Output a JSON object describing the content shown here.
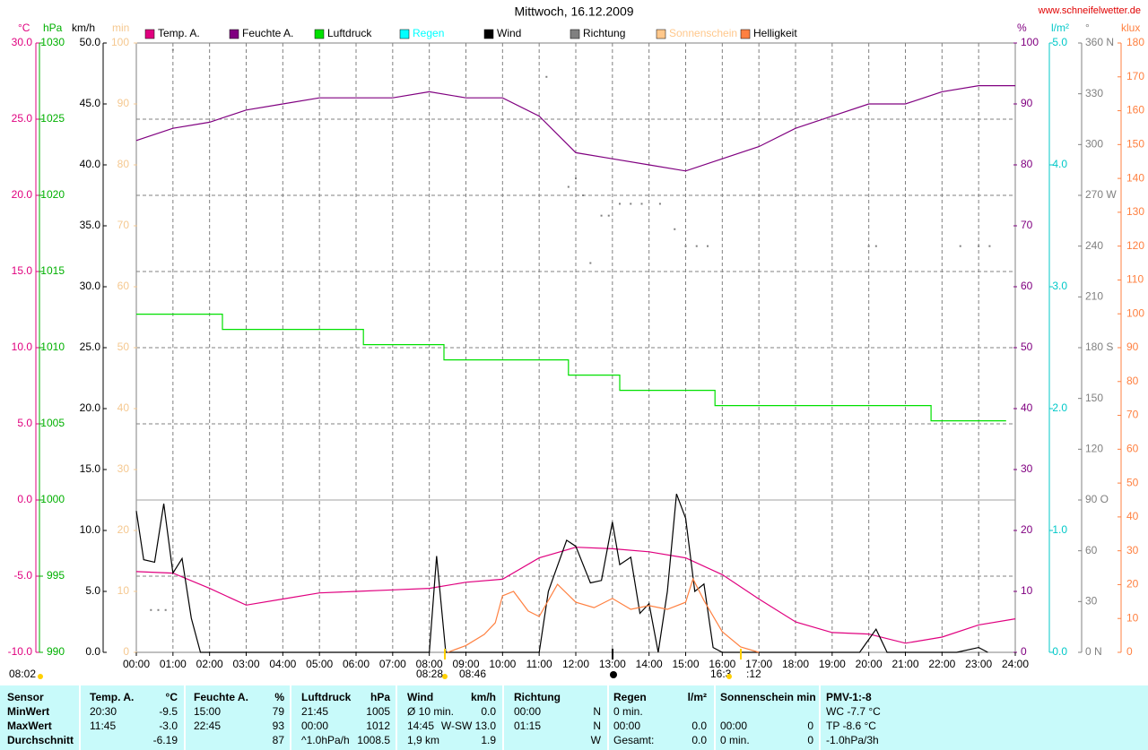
{
  "header": {
    "title": "Mittwoch, 16.12.2009",
    "site": "www.schneifelwetter.de"
  },
  "chart_data": {
    "type": "line",
    "xlim": [
      0,
      24
    ],
    "grid": true,
    "xticks": [
      {
        "value": 0,
        "label": "00:00"
      },
      {
        "value": 1,
        "label": "01:00"
      },
      {
        "value": 2,
        "label": "02:00"
      },
      {
        "value": 3,
        "label": "03:00"
      },
      {
        "value": 4,
        "label": "04:00"
      },
      {
        "value": 5,
        "label": "05:00"
      },
      {
        "value": 6,
        "label": "06:00"
      },
      {
        "value": 7,
        "label": "07:00"
      },
      {
        "value": 8,
        "label": "08:00"
      },
      {
        "value": 9,
        "label": "09:00"
      },
      {
        "value": 10,
        "label": "10:00"
      },
      {
        "value": 11,
        "label": "11:00"
      },
      {
        "value": 12,
        "label": "12:00"
      },
      {
        "value": 13,
        "label": "13:00"
      },
      {
        "value": 14,
        "label": "14:00"
      },
      {
        "value": 15,
        "label": "15:00"
      },
      {
        "value": 16,
        "label": "16:00"
      },
      {
        "value": 17,
        "label": "17:00"
      },
      {
        "value": 18,
        "label": "18:00"
      },
      {
        "value": 19,
        "label": "19:00"
      },
      {
        "value": 20,
        "label": "20:00"
      },
      {
        "value": 21,
        "label": "21:00"
      },
      {
        "value": 22,
        "label": "22:00"
      },
      {
        "value": 23,
        "label": "23:00"
      },
      {
        "value": 24,
        "label": "24:00"
      }
    ],
    "axes": [
      {
        "id": "temp",
        "unit": "°C",
        "color": "#e0007f",
        "lim": [
          -10,
          30
        ],
        "ticks": [
          {
            "value": 30,
            "label": "30.0"
          },
          {
            "value": 25,
            "label": "25.0"
          },
          {
            "value": 20,
            "label": "20.0"
          },
          {
            "value": 15,
            "label": "15.0"
          },
          {
            "value": 10,
            "label": "10.0"
          },
          {
            "value": 5,
            "label": "5.0"
          },
          {
            "value": 0,
            "label": "0.0"
          },
          {
            "value": -5,
            "label": "-5.0"
          },
          {
            "value": -10,
            "label": "-10.0"
          }
        ]
      },
      {
        "id": "hpa",
        "unit": "hPa",
        "color": "#00b000",
        "lim": [
          990,
          1030
        ],
        "ticks": [
          1030,
          1025,
          1020,
          1015,
          1010,
          1005,
          1000,
          995,
          990
        ]
      },
      {
        "id": "wind",
        "unit": "km/h",
        "color": "#000000",
        "lim": [
          0,
          50
        ],
        "ticks": [
          {
            "value": 50,
            "label": "50.0"
          },
          {
            "value": 45,
            "label": "45.0"
          },
          {
            "value": 40,
            "label": "40.0"
          },
          {
            "value": 35,
            "label": "35.0"
          },
          {
            "value": 30,
            "label": "30.0"
          },
          {
            "value": 25,
            "label": "25.0"
          },
          {
            "value": 20,
            "label": "20.0"
          },
          {
            "value": 15,
            "label": "15.0"
          },
          {
            "value": 10,
            "label": "10.0"
          },
          {
            "value": 5,
            "label": "5.0"
          },
          {
            "value": 0,
            "label": "0.0"
          }
        ]
      },
      {
        "id": "min",
        "unit": "min",
        "color": "#f5c890",
        "lim": [
          0,
          100
        ],
        "ticks": [
          100,
          90,
          80,
          70,
          60,
          50,
          40,
          30,
          20,
          10,
          0
        ]
      },
      {
        "id": "hum",
        "unit": "%",
        "color": "#800080",
        "lim": [
          0,
          100
        ],
        "ticks": [
          100,
          90,
          80,
          70,
          60,
          50,
          40,
          30,
          20,
          10,
          0
        ]
      },
      {
        "id": "rain",
        "unit": "l/m²",
        "color": "#00c8c8",
        "lim": [
          0,
          5
        ],
        "ticks": [
          {
            "value": 5,
            "label": "5.0"
          },
          {
            "value": 4,
            "label": "4.0"
          },
          {
            "value": 3,
            "label": "3.0"
          },
          {
            "value": 2,
            "label": "2.0"
          },
          {
            "value": 1,
            "label": "1.0"
          },
          {
            "value": 0,
            "label": "0.0"
          }
        ]
      },
      {
        "id": "dir",
        "unit": "°",
        "color": "#808080",
        "lim": [
          0,
          360
        ],
        "ticks": [
          {
            "value": 360,
            "label": "360 N"
          },
          330,
          300,
          {
            "value": 270,
            "label": "270 W"
          },
          240,
          210,
          {
            "value": 180,
            "label": "180 S"
          },
          150,
          120,
          {
            "value": 90,
            "label": "90 O"
          },
          60,
          30,
          {
            "value": 0,
            "label": "0 N"
          }
        ]
      },
      {
        "id": "klux",
        "unit": "klux",
        "color": "#ff8040",
        "lim": [
          0,
          180
        ],
        "ticks": [
          180,
          170,
          160,
          150,
          140,
          130,
          120,
          110,
          100,
          90,
          80,
          70,
          60,
          50,
          40,
          30,
          20,
          10,
          0
        ]
      }
    ],
    "series": [
      {
        "name": "Temp. A.",
        "color": "#e0007f",
        "axis": "temp",
        "x": [
          0,
          1,
          2,
          3,
          4,
          5,
          6,
          7,
          8,
          9,
          10,
          11,
          12,
          13,
          14,
          15,
          16,
          17,
          18,
          19,
          20,
          21,
          22,
          23,
          24
        ],
        "values": [
          -4.7,
          -4.8,
          -5.8,
          -6.9,
          -6.5,
          -6.1,
          -6.0,
          -5.9,
          -5.8,
          -5.4,
          -5.2,
          -3.8,
          -3.1,
          -3.2,
          -3.4,
          -3.8,
          -4.9,
          -6.5,
          -8.0,
          -8.7,
          -8.8,
          -9.4,
          -9.0,
          -8.2,
          -7.8
        ]
      },
      {
        "name": "Feuchte A.",
        "color": "#800080",
        "axis": "hum",
        "x": [
          0,
          1,
          2,
          3,
          4,
          5,
          6,
          7,
          8,
          9,
          10,
          11,
          12,
          13,
          14,
          15,
          16,
          17,
          18,
          19,
          20,
          21,
          22,
          23,
          24
        ],
        "values": [
          84,
          86,
          87,
          89,
          90,
          91,
          91,
          91,
          92,
          91,
          91,
          88,
          82,
          81,
          80,
          79,
          81,
          83,
          86,
          88,
          90,
          90,
          92,
          93,
          93
        ]
      },
      {
        "name": "Luftdruck",
        "color": "#00e000",
        "axis": "hpa",
        "x": [
          0,
          2.35,
          2.35,
          6.2,
          6.2,
          8.4,
          8.4,
          11.8,
          11.8,
          13.2,
          13.2,
          15.8,
          15.8,
          21.7,
          21.7,
          23.75
        ],
        "values": [
          1012.2,
          1012.2,
          1011.2,
          1011.2,
          1010.2,
          1010.2,
          1009.2,
          1009.2,
          1008.2,
          1008.2,
          1007.2,
          1007.2,
          1006.2,
          1006.2,
          1005.2,
          1005.2
        ]
      },
      {
        "name": "Regen",
        "color": "#00ffff",
        "axis": "rain"
      },
      {
        "name": "Wind",
        "color": "#000000",
        "axis": "wind",
        "x": [
          0,
          0.2,
          0.5,
          0.75,
          1,
          1.25,
          1.5,
          1.75,
          8,
          8.2,
          8.45,
          11,
          11.25,
          11.75,
          12,
          12.4,
          12.7,
          13,
          13.2,
          13.5,
          13.75,
          14,
          14.25,
          14.5,
          14.75,
          15,
          15.25,
          15.5,
          15.75,
          16,
          19.75,
          20.2,
          20.5,
          22.4,
          23,
          23.25
        ],
        "values": [
          11.6,
          7.6,
          7.4,
          12.2,
          6.5,
          7.7,
          2.8,
          0,
          0,
          7.9,
          0,
          0,
          5,
          9.2,
          8.7,
          5.7,
          5.9,
          10.7,
          7.2,
          7.8,
          3.2,
          4,
          0,
          5,
          13,
          11,
          5,
          5.6,
          0.4,
          0,
          0,
          1.9,
          0,
          0,
          0.4,
          0
        ]
      },
      {
        "name": "Richtung",
        "color": "#808080",
        "axis": "dir",
        "style": "dots",
        "x": [
          0.4,
          0.6,
          0.8,
          1.0,
          11.2,
          11.8,
          12.0,
          12.2,
          12.4,
          12.7,
          12.9,
          13.2,
          13.5,
          13.8,
          14.3,
          14.7,
          15.0,
          15.3,
          15.6,
          20.0,
          20.2,
          22.5,
          23.0,
          23.3
        ],
        "values": [
          25,
          25,
          25,
          356,
          340,
          275,
          280,
          270,
          230,
          258,
          258,
          265,
          265,
          265,
          265,
          250,
          240,
          240,
          240,
          240,
          240,
          240,
          240,
          240
        ]
      },
      {
        "name": "Sonnenschein",
        "color": "#ffc88c",
        "axis": "min"
      },
      {
        "name": "Helligkeit",
        "color": "#ff8040",
        "axis": "klux",
        "x": [
          8.5,
          9,
          9.5,
          9.8,
          10,
          10.3,
          10.7,
          11,
          11.5,
          12,
          12.5,
          13,
          13.5,
          14,
          14.5,
          15,
          15.2,
          15.5,
          16,
          16.5,
          17
        ],
        "values": [
          0,
          2,
          5.3,
          8.7,
          16.7,
          18,
          12.2,
          10.6,
          20.1,
          14.8,
          13.2,
          15.9,
          12.7,
          13.8,
          12.7,
          14.8,
          21.7,
          15.3,
          6.1,
          1.6,
          0
        ]
      }
    ],
    "annotations": [
      "08:02",
      "08:28",
      "08:46",
      "16:3",
      ":12"
    ]
  },
  "table": {
    "rows": [
      [
        "Sensor",
        "Temp. A.",
        "°C",
        "Feuchte A.",
        "%",
        "Luftdruck",
        "hPa",
        "Wind",
        "km/h",
        "Richtung",
        null,
        "Regen",
        "l/m²",
        "Sonnenschein min",
        null,
        "PMV-1:-8"
      ],
      [
        "MinWert",
        "20:30",
        "-9.5",
        "15:00",
        "79",
        "21:45",
        "1005",
        "Ø 10 min.",
        "0.0",
        "00:00",
        "N",
        "0 min.",
        null,
        null,
        null,
        "WC -7.7 °C"
      ],
      [
        "MaxWert",
        "11:45",
        "-3.0",
        "22:45",
        "93",
        "00:00",
        "1012",
        "14:45",
        "W-SW 13.0",
        "01:15",
        "N",
        "00:00",
        "0.0",
        "00:00",
        "0",
        "TP -8.6 °C"
      ],
      [
        "Durchschnitt",
        null,
        "-6.19",
        null,
        "87",
        "^1.0hPa/h",
        "1008.5",
        "1,9 km",
        "1.9",
        null,
        "W",
        "Gesamt:",
        "0.0",
        "0 min.",
        "0",
        "-1.0hPa/3h"
      ]
    ]
  }
}
